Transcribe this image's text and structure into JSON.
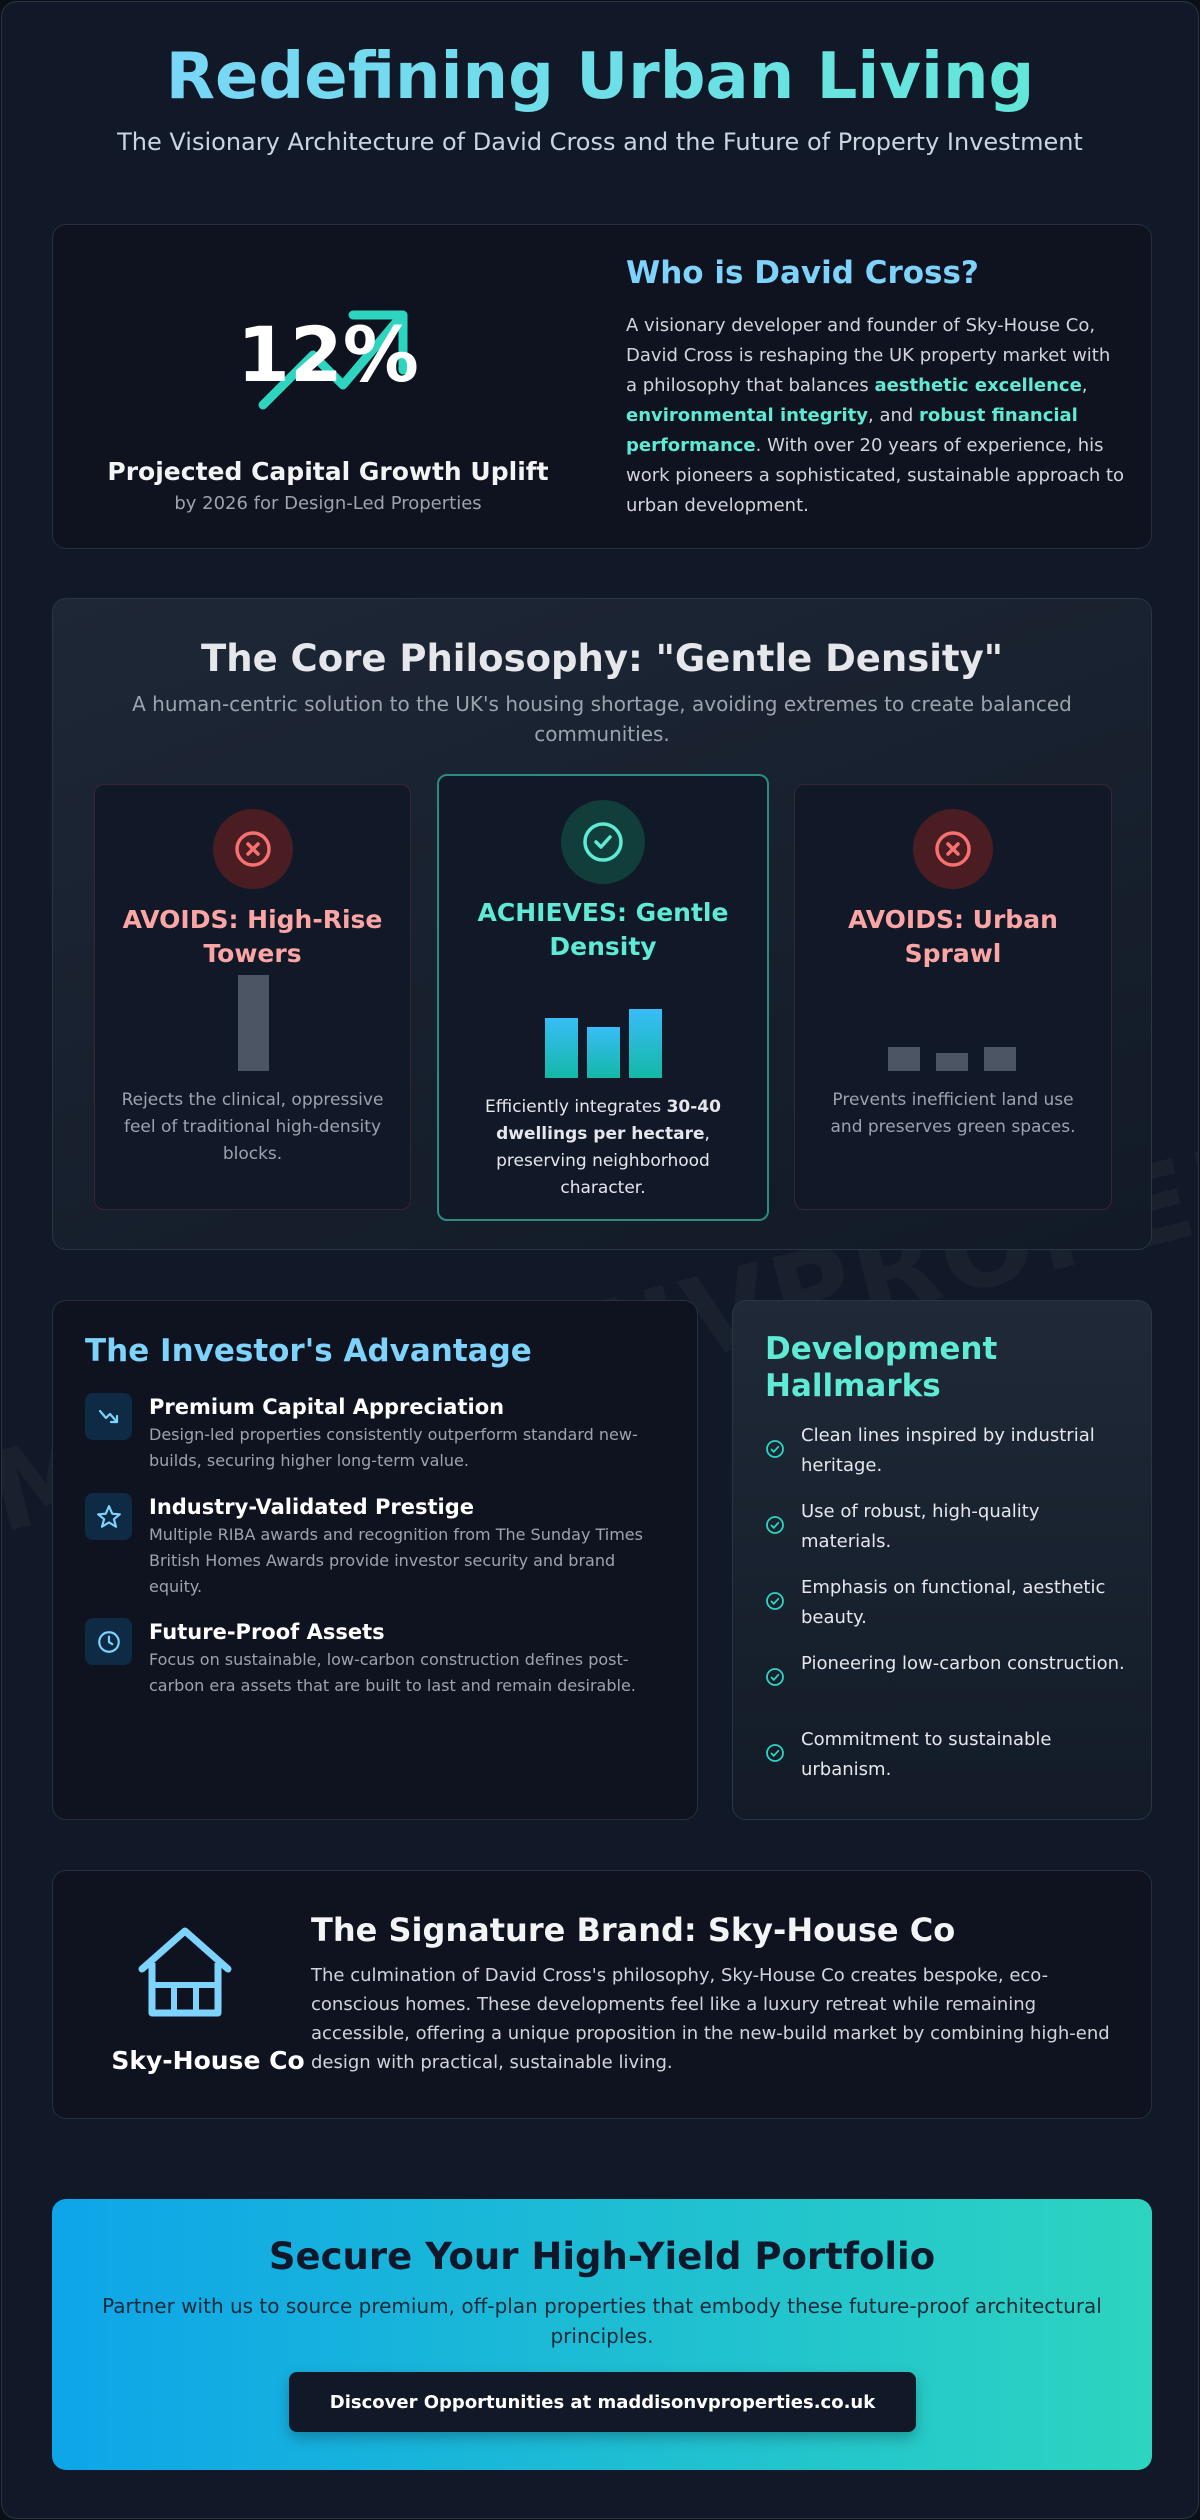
{
  "watermark": "MADDISONVPROPERTIES.CO.UK",
  "header": {
    "title": "Redefining Urban Living",
    "subtitle": "The Visionary Architecture of David Cross and the Future of Property Investment"
  },
  "stat": {
    "value": "12%",
    "label": "Projected Capital Growth Uplift",
    "sublabel": "by 2026 for Design-Led Properties"
  },
  "who": {
    "title": "Who is David Cross?",
    "text_1": "A visionary developer and founder of Sky-House Co, David Cross is reshaping the UK property market with a philosophy that balances ",
    "hl_1": "aesthetic excellence",
    "text_2": ", ",
    "hl_2": "environmental integrity",
    "text_3": ", and ",
    "hl_3": "robust financial performance",
    "text_4": ". With over 20 years of experience, his work pioneers a sophisticated, sustainable approach to urban development."
  },
  "core": {
    "title": "The Core Philosophy: \"Gentle Density\"",
    "subtitle": "A human-centric solution to the UK's housing shortage, avoiding extremes to create balanced communities.",
    "cards": [
      {
        "title": "AVOIDS: High-Rise Towers",
        "text": "Rejects the clinical, oppressive feel of traditional high-density blocks.",
        "icon": "x-circle-icon"
      },
      {
        "title": "ACHIEVES: Gentle Density",
        "text_1": "Efficiently integrates ",
        "bold": "30-40 dwellings per hectare",
        "text_2": ", preserving neighborhood character.",
        "icon": "check-circle-icon"
      },
      {
        "title": "AVOIDS: Urban Sprawl",
        "text": "Prevents inefficient land use and preserves green spaces.",
        "icon": "x-circle-icon"
      }
    ]
  },
  "investor": {
    "title": "The Investor's Advantage",
    "items": [
      {
        "title": "Premium Capital Appreciation",
        "text": "Design-led properties consistently outperform standard new-builds, securing higher long-term value.",
        "icon": "trend-arrow-icon"
      },
      {
        "title": "Industry-Validated Prestige",
        "text": "Multiple RIBA awards and recognition from The Sunday Times British Homes Awards provide investor security and brand equity.",
        "icon": "star-icon"
      },
      {
        "title": "Future-Proof Assets",
        "text": "Focus on sustainable, low-carbon construction defines post-carbon era assets that are built to last and remain desirable.",
        "icon": "clock-icon"
      }
    ]
  },
  "hallmarks": {
    "title": "Development Hallmarks",
    "items": [
      "Clean lines inspired by industrial heritage.",
      "Use of robust, high-quality materials.",
      "Emphasis on functional, aesthetic beauty.",
      "Pioneering low-carbon construction.",
      "Commitment to sustainable urbanism."
    ]
  },
  "brand": {
    "name": "Sky-House Co",
    "title": "The Signature Brand: Sky-House Co",
    "text": "The culmination of David Cross's philosophy, Sky-House Co creates bespoke, eco-conscious homes. These developments feel like a luxury retreat while remaining accessible, offering a unique proposition in the new-build market by combining high-end design with practical, sustainable living."
  },
  "cta": {
    "title": "Secure Your High-Yield Portfolio",
    "text": "Partner with us to source premium, off-plan properties that embody these future-proof architectural principles.",
    "button": "Discover Opportunities at maddisonvproperties.co.uk"
  },
  "colors": {
    "accent_blue": "#7dd3fc",
    "accent_teal": "#5eead4",
    "avoid_red": "#fca5a5",
    "background": "#111827"
  }
}
